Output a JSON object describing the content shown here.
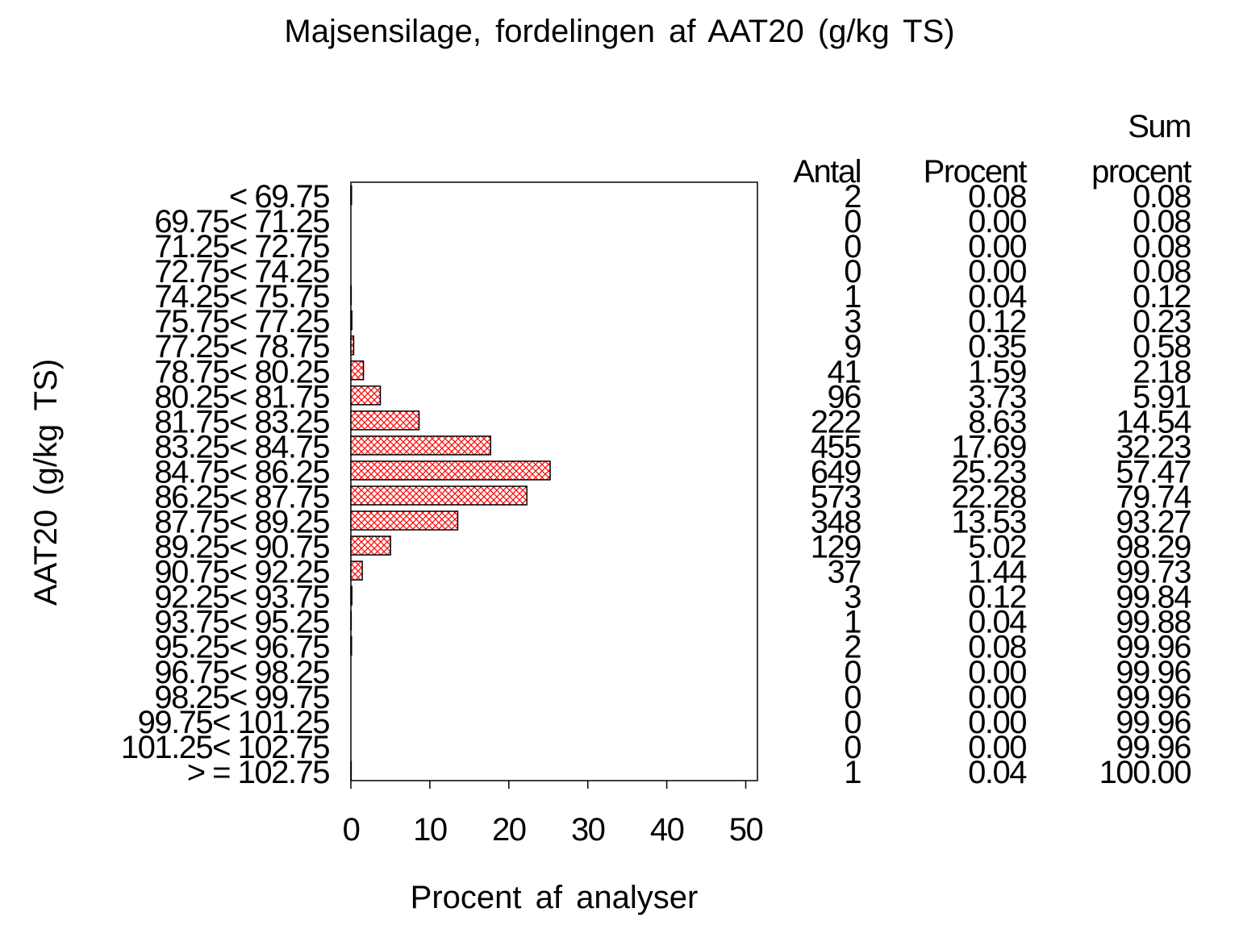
{
  "chart_data": {
    "type": "bar",
    "orientation": "horizontal",
    "title": "Majsensilage,  fordelingen  af  AAT20  (g/kg  TS)",
    "xlabel": "Procent  af  analyser",
    "ylabel": "AAT20  (g/kg  TS)",
    "xlim": [
      0,
      51
    ],
    "xticks": [
      0,
      10,
      20,
      30,
      40,
      50
    ],
    "grid": false,
    "bar_color": "#ff0000",
    "bar_pattern": "crosshatch",
    "categories": [
      "< 69.75",
      "69.75< 71.25",
      "71.25< 72.75",
      "72.75< 74.25",
      "74.25< 75.75",
      "75.75< 77.25",
      "77.25< 78.75",
      "78.75< 80.25",
      "80.25< 81.75",
      "81.75< 83.25",
      "83.25< 84.75",
      "84.75< 86.25",
      "86.25< 87.75",
      "87.75< 89.25",
      "89.25< 90.75",
      "90.75< 92.25",
      "92.25< 93.75",
      "93.75< 95.25",
      "95.25< 96.75",
      "96.75< 98.25",
      "98.25< 99.75",
      "99.75< 101.25",
      "101.25< 102.75",
      "> = 102.75"
    ],
    "values": [
      0.08,
      0.0,
      0.0,
      0.0,
      0.04,
      0.12,
      0.35,
      1.59,
      3.73,
      8.63,
      17.69,
      25.23,
      22.28,
      13.53,
      5.02,
      1.44,
      0.12,
      0.04,
      0.08,
      0.0,
      0.0,
      0.0,
      0.0,
      0.04
    ],
    "table": {
      "headers": {
        "antal": "Antal",
        "procent": "Procent",
        "sum_line1": "Sum",
        "sum_line2": "procent"
      },
      "antal": [
        "2",
        "0",
        "0",
        "0",
        "1",
        "3",
        "9",
        "41",
        "96",
        "222",
        "455",
        "649",
        "573",
        "348",
        "129",
        "37",
        "3",
        "1",
        "2",
        "0",
        "0",
        "0",
        "0",
        "1"
      ],
      "procent": [
        "0.08",
        "0.00",
        "0.00",
        "0.00",
        "0.04",
        "0.12",
        "0.35",
        "1.59",
        "3.73",
        "8.63",
        "17.69",
        "25.23",
        "22.28",
        "13.53",
        "5.02",
        "1.44",
        "0.12",
        "0.04",
        "0.08",
        "0.00",
        "0.00",
        "0.00",
        "0.00",
        "0.04"
      ],
      "sum_procent": [
        "0.08",
        "0.08",
        "0.08",
        "0.08",
        "0.12",
        "0.23",
        "0.58",
        "2.18",
        "5.91",
        "14.54",
        "32.23",
        "57.47",
        "79.74",
        "93.27",
        "98.29",
        "99.73",
        "99.84",
        "99.88",
        "99.96",
        "99.96",
        "99.96",
        "99.96",
        "99.96",
        "100.00"
      ]
    }
  }
}
